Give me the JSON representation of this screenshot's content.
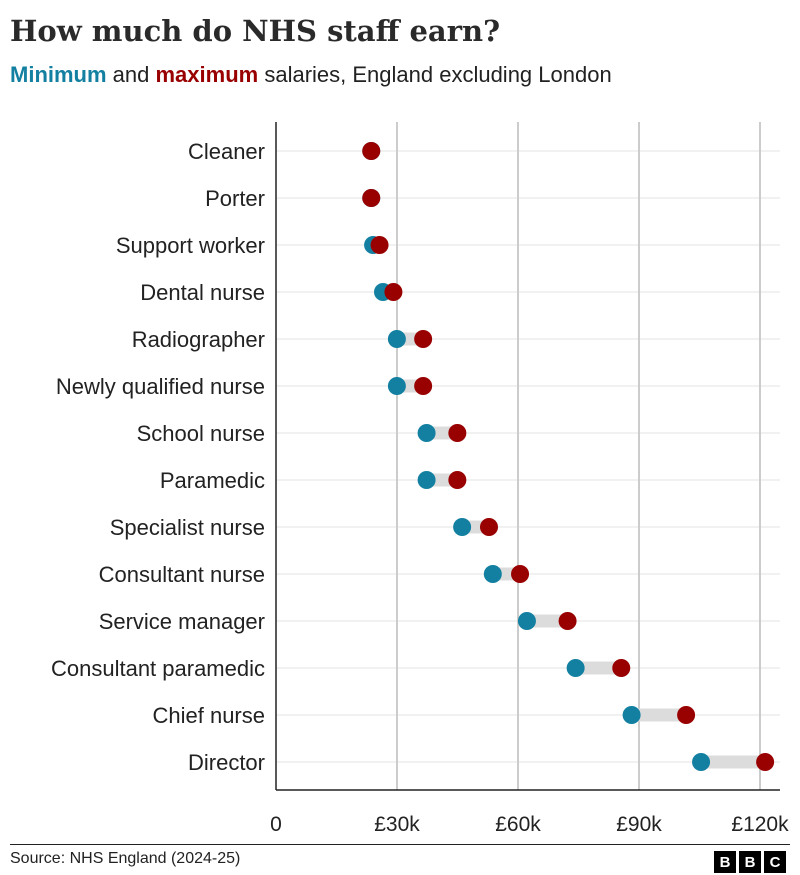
{
  "title": "How much do NHS staff earn?",
  "subtitle": {
    "min_word": "Minimum",
    "and": " and ",
    "max_word": "maximum",
    "rest": " salaries, England excluding London"
  },
  "source": "Source: NHS England (2024-25)",
  "logo": [
    "B",
    "B",
    "C"
  ],
  "colors": {
    "min": "#1380A1",
    "max": "#990000",
    "range": "#dcdcdc",
    "grid": "#cccccc"
  },
  "chart_data": {
    "type": "dumbbell",
    "title": "How much do NHS staff earn?",
    "xlim": [
      0,
      120000
    ],
    "xticks": [
      0,
      30000,
      60000,
      90000,
      120000
    ],
    "xtick_labels": [
      "0",
      "£30k",
      "£60k",
      "£90k",
      "£120k"
    ],
    "categories": [
      "Cleaner",
      "Porter",
      "Support worker",
      "Dental nurse",
      "Radiographer",
      "Newly qualified nurse",
      "School nurse",
      "Paramedic",
      "Specialist nurse",
      "Consultant nurse",
      "Service manager",
      "Consultant paramedic",
      "Chief nurse",
      "Director"
    ],
    "series": [
      {
        "name": "Minimum",
        "values": [
          23615,
          23615,
          24071,
          26530,
          29970,
          29970,
          37338,
          37338,
          46148,
          53755,
          62215,
          74290,
          88168,
          105385
        ]
      },
      {
        "name": "Maximum",
        "values": [
          23615,
          23615,
          25674,
          29114,
          36483,
          36483,
          44962,
          44962,
          52809,
          60504,
          72293,
          85601,
          101677,
          121271
        ]
      }
    ]
  }
}
